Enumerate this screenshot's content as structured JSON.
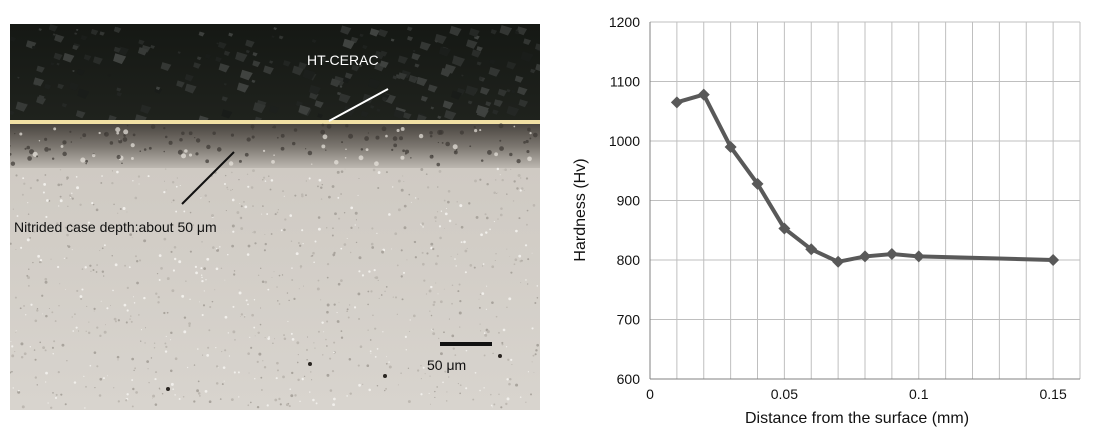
{
  "micrograph": {
    "coating_label": "HT-CERAC",
    "case_depth_label": "Nitrided case depth:about 50 μm",
    "scale_bar_label": "50 μm"
  },
  "chart_data": {
    "type": "line",
    "title": "",
    "xlabel": "Distance from the surface (mm)",
    "ylabel": "Hardness (Hv)",
    "xlim": [
      0,
      0.16
    ],
    "ylim": [
      600,
      1200
    ],
    "x_ticks": [
      "0",
      "0.05",
      "0.1",
      "0.15"
    ],
    "y_ticks": [
      "600",
      "700",
      "800",
      "900",
      "1000",
      "1100",
      "1200"
    ],
    "grid": true,
    "series": [
      {
        "name": "",
        "color": "#595959",
        "points": [
          {
            "x": 0.01,
            "y": 1065
          },
          {
            "x": 0.02,
            "y": 1078
          },
          {
            "x": 0.03,
            "y": 990
          },
          {
            "x": 0.04,
            "y": 928
          },
          {
            "x": 0.05,
            "y": 853
          },
          {
            "x": 0.06,
            "y": 818
          },
          {
            "x": 0.07,
            "y": 797
          },
          {
            "x": 0.08,
            "y": 806
          },
          {
            "x": 0.09,
            "y": 810
          },
          {
            "x": 0.1,
            "y": 806
          },
          {
            "x": 0.15,
            "y": 800
          }
        ]
      }
    ]
  }
}
